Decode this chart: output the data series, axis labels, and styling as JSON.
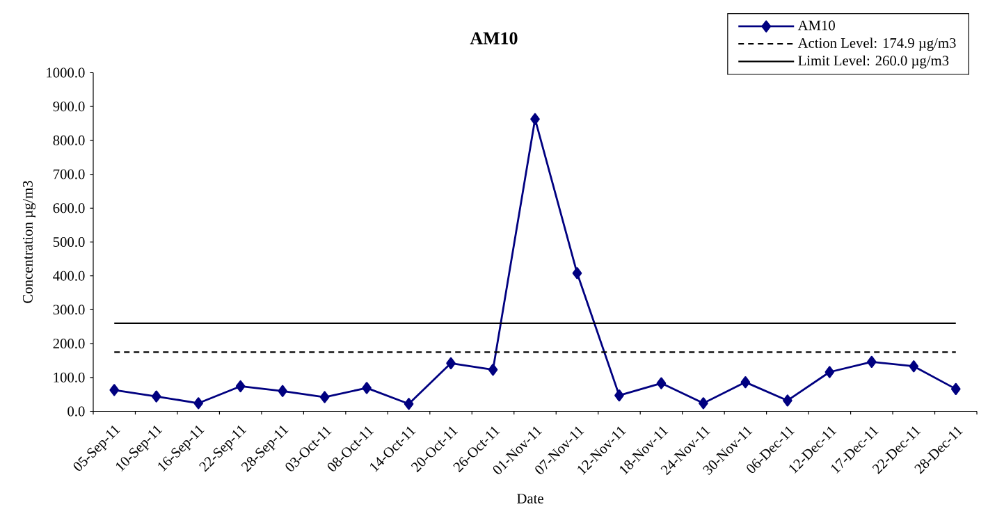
{
  "chart_data": {
    "type": "line",
    "title": "AM10",
    "xlabel": "Date",
    "ylabel": "Concentration µg/m3",
    "categories": [
      "05-Sep-11",
      "10-Sep-11",
      "16-Sep-11",
      "22-Sep-11",
      "28-Sep-11",
      "03-Oct-11",
      "08-Oct-11",
      "14-Oct-11",
      "20-Oct-11",
      "26-Oct-11",
      "01-Nov-11",
      "07-Nov-11",
      "12-Nov-11",
      "18-Nov-11",
      "24-Nov-11",
      "30-Nov-11",
      "06-Dec-11",
      "12-Dec-11",
      "17-Dec-11",
      "22-Dec-11",
      "28-Dec-11"
    ],
    "series": [
      {
        "name": "AM10",
        "color": "#000080",
        "values": [
          63,
          44,
          24,
          74,
          60,
          42,
          69,
          22,
          142,
          123,
          863,
          408,
          47,
          83,
          24,
          86,
          32,
          116,
          146,
          133,
          66
        ]
      }
    ],
    "ylim": [
      0,
      1000
    ],
    "yticks": [
      {
        "value": 0,
        "label": "0.0"
      },
      {
        "value": 100,
        "label": "100.0"
      },
      {
        "value": 200,
        "label": "200.0"
      },
      {
        "value": 300,
        "label": "300.0"
      },
      {
        "value": 400,
        "label": "400.0"
      },
      {
        "value": 500,
        "label": "500.0"
      },
      {
        "value": 600,
        "label": "600.0"
      },
      {
        "value": 700,
        "label": "700.0"
      },
      {
        "value": 800,
        "label": "800.0"
      },
      {
        "value": 900,
        "label": "900.0"
      },
      {
        "value": 1000,
        "label": "1000.0"
      }
    ],
    "ref_lines": [
      {
        "axis": "y",
        "value": 174.9,
        "label": "Action Level: 174.9 µg/m3",
        "color": "#000000",
        "line_style": "dashed"
      },
      {
        "axis": "y",
        "value": 260.0,
        "label": "Limit Level: 260.0 µg/m3",
        "color": "#000000",
        "line_style": "solid"
      }
    ],
    "legend": "top right",
    "marker": "diamond",
    "line_style": "solid"
  }
}
